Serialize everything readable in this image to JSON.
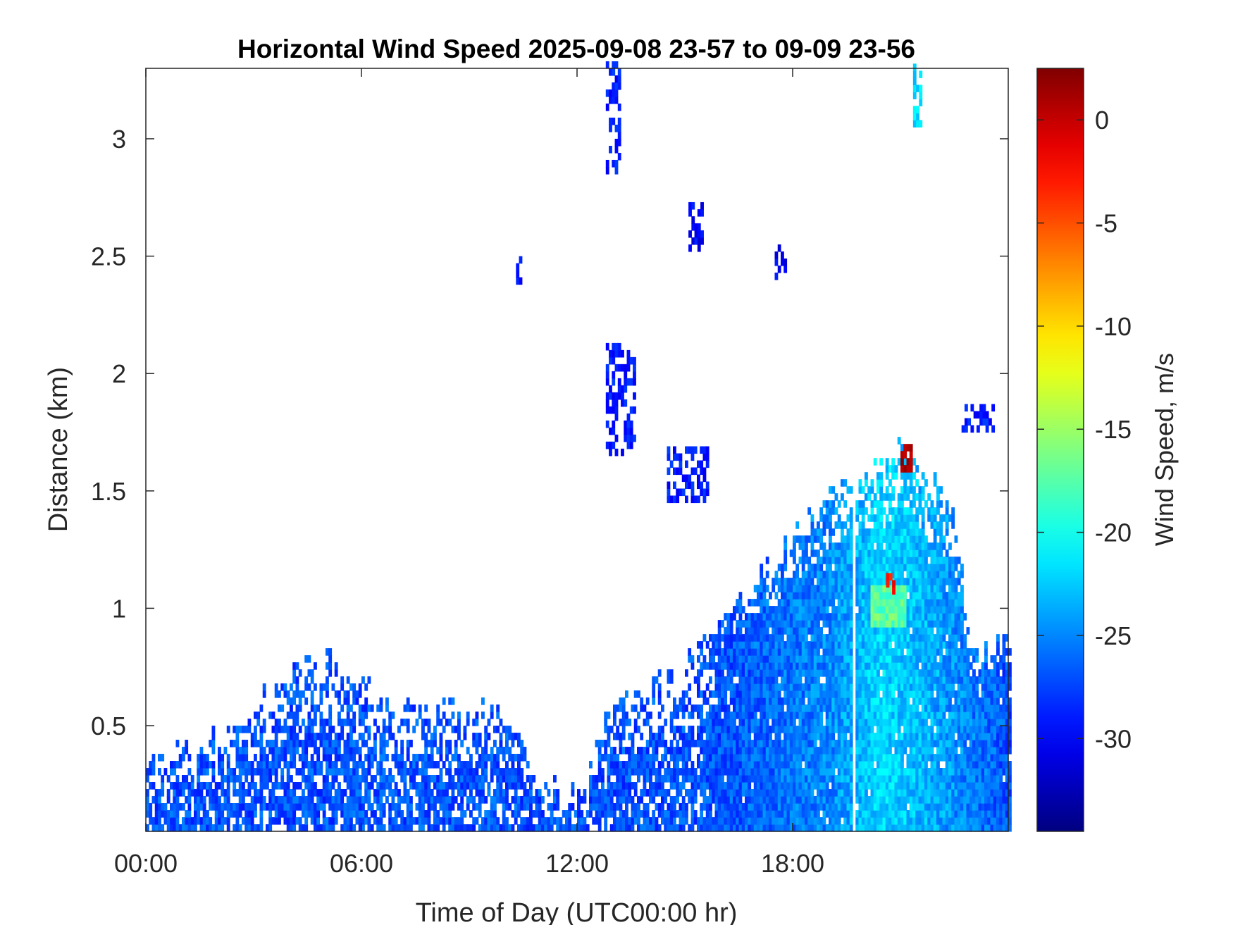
{
  "chart_data": {
    "type": "heatmap",
    "title": "Horizontal Wind Speed 2025-09-08 23-57 to 09-09 23-56",
    "xlabel": "Time of Day (UTC00:00 hr)",
    "ylabel": "Distance (km)",
    "colorbar_label": "Wind Speed, m/s",
    "colormap": "jet",
    "xlim_hours": [
      0,
      24
    ],
    "ylim_km": [
      0.05,
      3.3
    ],
    "clim": [
      -34.5,
      2.5
    ],
    "x_ticks": [
      {
        "value": 0,
        "label": "00:00"
      },
      {
        "value": 6,
        "label": "06:00"
      },
      {
        "value": 12,
        "label": "12:00"
      },
      {
        "value": 18,
        "label": "18:00"
      }
    ],
    "y_ticks": [
      {
        "value": 0.5,
        "label": "0.5"
      },
      {
        "value": 1,
        "label": "1"
      },
      {
        "value": 1.5,
        "label": "1.5"
      },
      {
        "value": 2,
        "label": "2"
      },
      {
        "value": 2.5,
        "label": "2.5"
      },
      {
        "value": 3,
        "label": "3"
      }
    ],
    "colorbar_ticks": [
      {
        "value": 0,
        "label": "0"
      },
      {
        "value": -5,
        "label": "-5"
      },
      {
        "value": -10,
        "label": "-10"
      },
      {
        "value": -15,
        "label": "-15"
      },
      {
        "value": -20,
        "label": "-20"
      },
      {
        "value": -25,
        "label": "-25"
      },
      {
        "value": -30,
        "label": "-30"
      }
    ],
    "data_top_profile_km": [
      {
        "hour": 0.0,
        "top": 0.3
      },
      {
        "hour": 1.0,
        "top": 0.37
      },
      {
        "hour": 2.0,
        "top": 0.45
      },
      {
        "hour": 3.0,
        "top": 0.58
      },
      {
        "hour": 4.0,
        "top": 0.7
      },
      {
        "hour": 5.0,
        "top": 0.78
      },
      {
        "hour": 6.0,
        "top": 0.68
      },
      {
        "hour": 7.0,
        "top": 0.58
      },
      {
        "hour": 8.0,
        "top": 0.55
      },
      {
        "hour": 9.0,
        "top": 0.55
      },
      {
        "hour": 10.0,
        "top": 0.55
      },
      {
        "hour": 11.0,
        "top": 0.25
      },
      {
        "hour": 12.0,
        "top": 0.2
      },
      {
        "hour": 13.0,
        "top": 0.6
      },
      {
        "hour": 14.0,
        "top": 0.65
      },
      {
        "hour": 15.0,
        "top": 0.72
      },
      {
        "hour": 16.0,
        "top": 0.95
      },
      {
        "hour": 17.0,
        "top": 1.12
      },
      {
        "hour": 18.0,
        "top": 1.28
      },
      {
        "hour": 19.0,
        "top": 1.5
      },
      {
        "hour": 20.0,
        "top": 1.55
      },
      {
        "hour": 20.5,
        "top": 1.6
      },
      {
        "hour": 21.0,
        "top": 1.7
      },
      {
        "hour": 22.0,
        "top": 1.5
      },
      {
        "hour": 22.5,
        "top": 1.35
      },
      {
        "hour": 23.0,
        "top": 0.8
      },
      {
        "hour": 24.0,
        "top": 0.85
      }
    ],
    "speed_profile_m_s": [
      {
        "hour": 0.0,
        "speed": -27
      },
      {
        "hour": 16.0,
        "speed": -27
      },
      {
        "hour": 19.0,
        "speed": -25
      },
      {
        "hour": 20.5,
        "speed": -22
      },
      {
        "hour": 21.5,
        "speed": -23
      },
      {
        "hour": 24.0,
        "speed": -27
      }
    ],
    "data_gaps_hours": [
      {
        "start": 19.7,
        "end": 19.78
      }
    ],
    "isolated_patches": [
      {
        "hour_start": 12.8,
        "hour_end": 13.2,
        "km_bottom": 2.85,
        "km_top": 3.3,
        "speed": -29
      },
      {
        "hour_start": 21.35,
        "hour_end": 21.55,
        "km_bottom": 3.05,
        "km_top": 3.3,
        "speed": -22
      },
      {
        "hour_start": 15.1,
        "hour_end": 15.5,
        "km_bottom": 2.52,
        "km_top": 2.7,
        "speed": -30
      },
      {
        "hour_start": 10.3,
        "hour_end": 10.45,
        "km_bottom": 2.38,
        "km_top": 2.48,
        "speed": -30
      },
      {
        "hour_start": 17.5,
        "hour_end": 17.75,
        "km_bottom": 2.4,
        "km_top": 2.52,
        "speed": -30
      },
      {
        "hour_start": 12.8,
        "hour_end": 13.6,
        "km_bottom": 1.65,
        "km_top": 2.12,
        "speed": -29
      },
      {
        "hour_start": 14.5,
        "hour_end": 15.6,
        "km_bottom": 1.45,
        "km_top": 1.68,
        "speed": -29
      },
      {
        "hour_start": 22.7,
        "hour_end": 23.6,
        "km_bottom": 1.75,
        "km_top": 1.85,
        "speed": -29
      },
      {
        "hour_start": 21.0,
        "hour_end": 21.25,
        "km_bottom": 1.58,
        "km_top": 1.68,
        "speed": 1
      },
      {
        "hour_start": 20.6,
        "hour_end": 20.8,
        "km_bottom": 1.0,
        "km_top": 1.15,
        "speed": -3
      }
    ]
  }
}
